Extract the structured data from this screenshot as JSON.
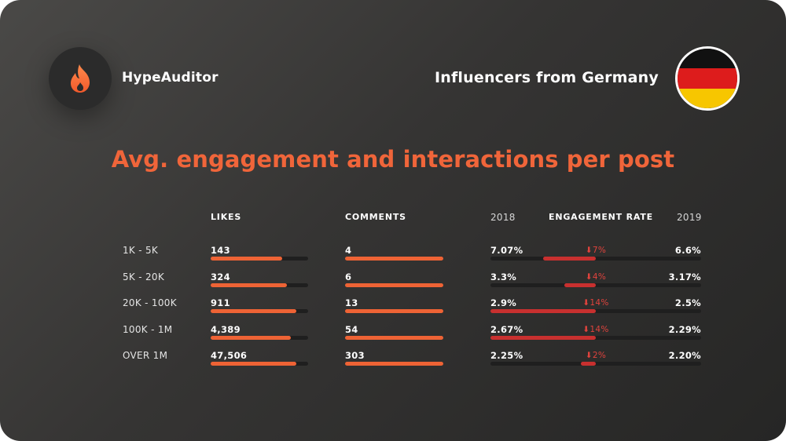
{
  "brand": {
    "name": "HypeAuditor",
    "logo_icon": "flame-icon",
    "accent": "#f0653a"
  },
  "region": {
    "label": "Influencers from Germany",
    "flag_icon": "germany-flag-icon",
    "flag_colors": [
      "#111111",
      "#dd1c1c",
      "#f7c600"
    ]
  },
  "title": "Avg. engagement and interactions per post",
  "headers": {
    "likes": "LIKES",
    "comments": "COMMENTS",
    "year_left": "2018",
    "engagement": "ENGAGEMENT RATE",
    "year_right": "2019"
  },
  "chart_data": {
    "type": "table",
    "title": "Avg. engagement and interactions per post",
    "categories": [
      "1K - 5K",
      "5K - 20K",
      "20K - 100K",
      "100K - 1M",
      "OVER 1M"
    ],
    "rows": [
      {
        "tier": "1K - 5K",
        "likes": "143",
        "comments": "4",
        "er_2018": "7.07%",
        "change": "⬇7%",
        "er_2019": "6.6%",
        "likes_bar": 0.73,
        "comments_bar": 1.0,
        "er_bar_start": 0.25,
        "er_bar_end": 0.5
      },
      {
        "tier": "5K - 20K",
        "likes": "324",
        "comments": "6",
        "er_2018": "3.3%",
        "change": "⬇4%",
        "er_2019": "3.17%",
        "likes_bar": 0.78,
        "comments_bar": 1.0,
        "er_bar_start": 0.35,
        "er_bar_end": 0.5
      },
      {
        "tier": "20K - 100K",
        "likes": "911",
        "comments": "13",
        "er_2018": "2.9%",
        "change": "⬇14%",
        "er_2019": "2.5%",
        "likes_bar": 0.88,
        "comments_bar": 1.0,
        "er_bar_start": 0.0,
        "er_bar_end": 0.5
      },
      {
        "tier": "100K - 1M",
        "likes": "4,389",
        "comments": "54",
        "er_2018": "2.67%",
        "change": "⬇14%",
        "er_2019": "2.29%",
        "likes_bar": 0.82,
        "comments_bar": 1.0,
        "er_bar_start": 0.0,
        "er_bar_end": 0.5
      },
      {
        "tier": "OVER 1M",
        "likes": "47,506",
        "comments": "303",
        "er_2018": "2.25%",
        "change": "⬇2%",
        "er_2019": "2.20%",
        "likes_bar": 0.88,
        "comments_bar": 1.0,
        "er_bar_start": 0.43,
        "er_bar_end": 0.5
      }
    ],
    "colors": {
      "bar": "#ee6335",
      "engagement_bar": "#c8302f",
      "change_text": "#e0433d",
      "track": "#1f1f1f"
    }
  }
}
